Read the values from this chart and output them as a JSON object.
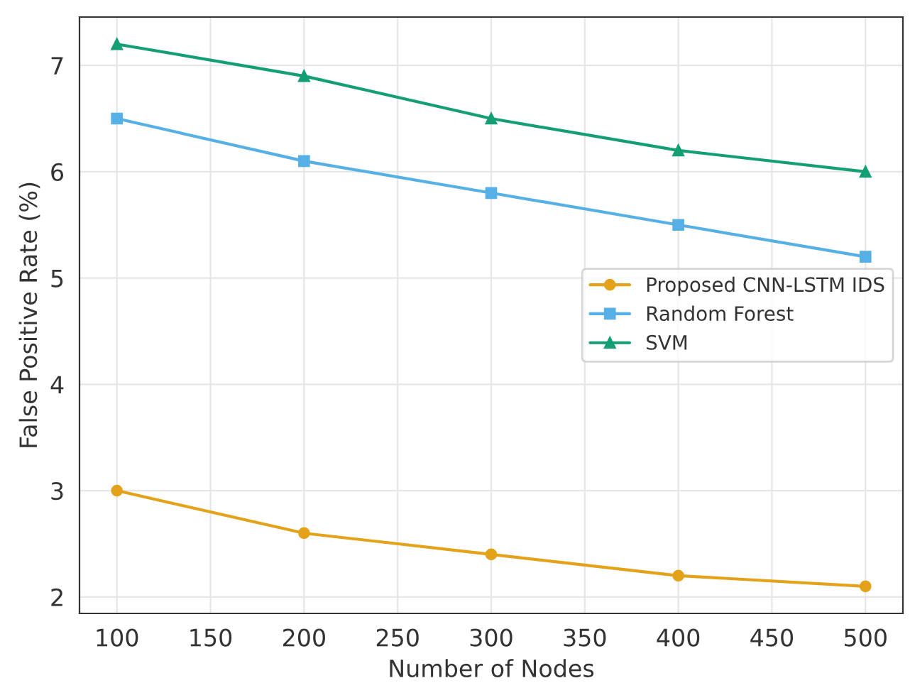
{
  "chart_data": {
    "type": "line",
    "xlabel": "Number of Nodes",
    "ylabel": "False Positive Rate (%)",
    "x": [
      100,
      200,
      300,
      400,
      500
    ],
    "series": [
      {
        "name": "Proposed CNN-LSTM IDS",
        "color": "#e3a21a",
        "marker": "circle",
        "values": [
          3.0,
          2.6,
          2.4,
          2.2,
          2.1
        ]
      },
      {
        "name": "Random Forest",
        "color": "#56b0e6",
        "marker": "square",
        "values": [
          6.5,
          6.1,
          5.8,
          5.5,
          5.2
        ]
      },
      {
        "name": "SVM",
        "color": "#149e73",
        "marker": "triangle",
        "values": [
          7.2,
          6.9,
          6.5,
          6.2,
          6.0
        ]
      }
    ],
    "xlim": [
      80,
      520
    ],
    "ylim": [
      1.845,
      7.455
    ],
    "xticks": [
      100,
      150,
      200,
      250,
      300,
      350,
      400,
      450,
      500
    ],
    "yticks": [
      2,
      3,
      4,
      5,
      6,
      7
    ],
    "grid": true,
    "legend": "center right",
    "line_style": "solid"
  }
}
